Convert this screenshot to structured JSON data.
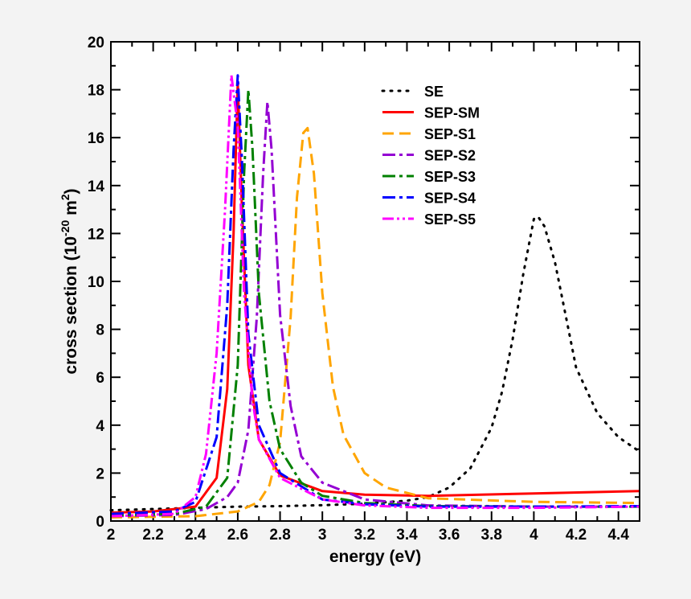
{
  "chart_data": {
    "type": "line",
    "xlabel": "energy (eV)",
    "ylabel": {
      "main": "cross section (10",
      "exponent": "-20",
      "unit": " m",
      "unit_exponent": "2",
      "close": ")"
    },
    "xlim": [
      2,
      4.5
    ],
    "ylim": [
      0,
      20
    ],
    "xticks": [
      "2",
      "2.2",
      "2.4",
      "2.6",
      "2.8",
      "3",
      "3.2",
      "3.4",
      "3.6",
      "3.8",
      "4",
      "4.2",
      "4.4"
    ],
    "yticks": [
      "0",
      "2",
      "4",
      "6",
      "8",
      "10",
      "12",
      "14",
      "16",
      "18",
      "20"
    ],
    "legend_position": "top-right",
    "series": [
      {
        "name": "SE",
        "color": "#000000",
        "style": "dotted",
        "x": [
          2,
          2.2,
          2.4,
          2.6,
          2.8,
          3,
          3.2,
          3.4,
          3.5,
          3.6,
          3.7,
          3.8,
          3.85,
          3.9,
          3.95,
          4,
          4.02,
          4.05,
          4.1,
          4.15,
          4.2,
          4.3,
          4.4,
          4.5
        ],
        "y": [
          0.45,
          0.5,
          0.55,
          0.6,
          0.62,
          0.66,
          0.72,
          0.85,
          1.0,
          1.4,
          2.2,
          3.9,
          5.4,
          7.6,
          10.3,
          12.6,
          12.7,
          12.3,
          10.8,
          8.6,
          6.4,
          4.5,
          3.5,
          2.9
        ]
      },
      {
        "name": "SEP-SM",
        "color": "#ff0000",
        "style": "solid",
        "x": [
          2,
          2.2,
          2.4,
          2.5,
          2.55,
          2.58,
          2.6,
          2.62,
          2.65,
          2.7,
          2.8,
          3,
          3.2,
          3.5,
          4,
          4.5
        ],
        "y": [
          0.35,
          0.4,
          0.6,
          1.8,
          5.5,
          12,
          18.3,
          13,
          6.5,
          3.4,
          1.9,
          1.25,
          1.1,
          1.05,
          1.15,
          1.25
        ]
      },
      {
        "name": "SEP-S1",
        "color": "#ffa500",
        "style": "dashed",
        "x": [
          2,
          2.4,
          2.6,
          2.7,
          2.75,
          2.8,
          2.85,
          2.88,
          2.91,
          2.93,
          2.96,
          3,
          3.05,
          3.1,
          3.2,
          3.3,
          3.5,
          4,
          4.5
        ],
        "y": [
          0.15,
          0.2,
          0.4,
          0.8,
          1.5,
          3.3,
          8.5,
          13.5,
          16.2,
          16.4,
          14.5,
          9.5,
          5.6,
          3.6,
          2.0,
          1.4,
          0.95,
          0.8,
          0.75
        ]
      },
      {
        "name": "SEP-S2",
        "color": "#9400d3",
        "style": "dash-dot",
        "x": [
          2,
          2.3,
          2.45,
          2.55,
          2.6,
          2.65,
          2.69,
          2.72,
          2.74,
          2.76,
          2.8,
          2.85,
          2.9,
          3,
          3.2,
          3.5,
          4,
          4.5
        ],
        "y": [
          0.2,
          0.25,
          0.5,
          1.0,
          1.6,
          3.8,
          8.5,
          14.5,
          17.5,
          15.5,
          8.6,
          4.8,
          2.7,
          1.6,
          0.9,
          0.65,
          0.6,
          0.6
        ]
      },
      {
        "name": "SEP-S3",
        "color": "#008000",
        "style": "dash-dot",
        "x": [
          2,
          2.3,
          2.45,
          2.55,
          2.6,
          2.63,
          2.65,
          2.67,
          2.7,
          2.75,
          2.8,
          2.9,
          3,
          3.2,
          3.5,
          4,
          4.5
        ],
        "y": [
          0.25,
          0.3,
          0.6,
          1.8,
          6.5,
          14.5,
          18.0,
          15.5,
          9.5,
          5.0,
          3.0,
          1.6,
          1.05,
          0.75,
          0.62,
          0.6,
          0.6
        ]
      },
      {
        "name": "SEP-S4",
        "color": "#0000ff",
        "style": "dash-dot",
        "x": [
          2,
          2.3,
          2.4,
          2.5,
          2.55,
          2.58,
          2.6,
          2.62,
          2.65,
          2.7,
          2.8,
          3,
          3.2,
          3.5,
          4,
          4.5
        ],
        "y": [
          0.3,
          0.4,
          0.8,
          3.5,
          9.0,
          15.5,
          18.6,
          15.0,
          7.8,
          4.0,
          2.0,
          0.9,
          0.7,
          0.6,
          0.6,
          0.62
        ]
      },
      {
        "name": "SEP-S5",
        "color": "#ff00ff",
        "style": "dash-dot-dot",
        "x": [
          2,
          2.3,
          2.4,
          2.45,
          2.5,
          2.54,
          2.57,
          2.6,
          2.63,
          2.67,
          2.7,
          2.8,
          3,
          3.2,
          3.5,
          4,
          4.5
        ],
        "y": [
          0.2,
          0.3,
          1.0,
          2.8,
          7.0,
          13.0,
          18.6,
          16.5,
          9.5,
          5.0,
          3.4,
          1.8,
          0.9,
          0.65,
          0.55,
          0.55,
          0.6
        ]
      }
    ]
  }
}
